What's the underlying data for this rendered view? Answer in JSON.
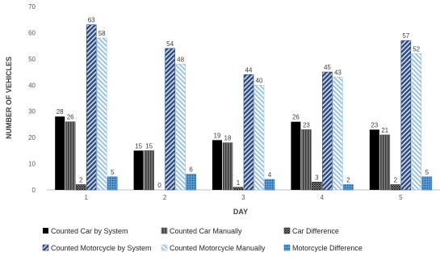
{
  "chart_data": {
    "type": "bar",
    "title": "",
    "xlabel": "DAY",
    "ylabel": "NUMBER OF VEHICLES",
    "ylim": [
      0,
      70
    ],
    "yticks": [
      0,
      10,
      20,
      30,
      40,
      50,
      60,
      70
    ],
    "grid": false,
    "legend_position": "bottom",
    "categories": [
      "1",
      "2",
      "3",
      "4",
      "5"
    ],
    "series": [
      {
        "name": "Counted Car by System",
        "values": [
          28,
          15,
          19,
          26,
          23
        ],
        "fill": "solid",
        "color": "#000000"
      },
      {
        "name": "Counted Car Manually",
        "values": [
          26,
          15,
          18,
          23,
          21
        ],
        "fill": "vstripes",
        "color": "#595959"
      },
      {
        "name": "Car Difference",
        "values": [
          2,
          0,
          1,
          3,
          2
        ],
        "fill": "cross",
        "color": "#262626"
      },
      {
        "name": "Counted Motorcycle by System",
        "values": [
          63,
          54,
          44,
          45,
          57
        ],
        "fill": "diag-dark",
        "color": "#2E4A7D"
      },
      {
        "name": "Counted Motorcycle Manually",
        "values": [
          58,
          48,
          40,
          43,
          52
        ],
        "fill": "diag-light",
        "color": "#9DC3E6"
      },
      {
        "name": "Motorcycle Difference",
        "values": [
          5,
          6,
          4,
          2,
          5
        ],
        "fill": "dots",
        "color": "#2E75B6"
      }
    ]
  }
}
